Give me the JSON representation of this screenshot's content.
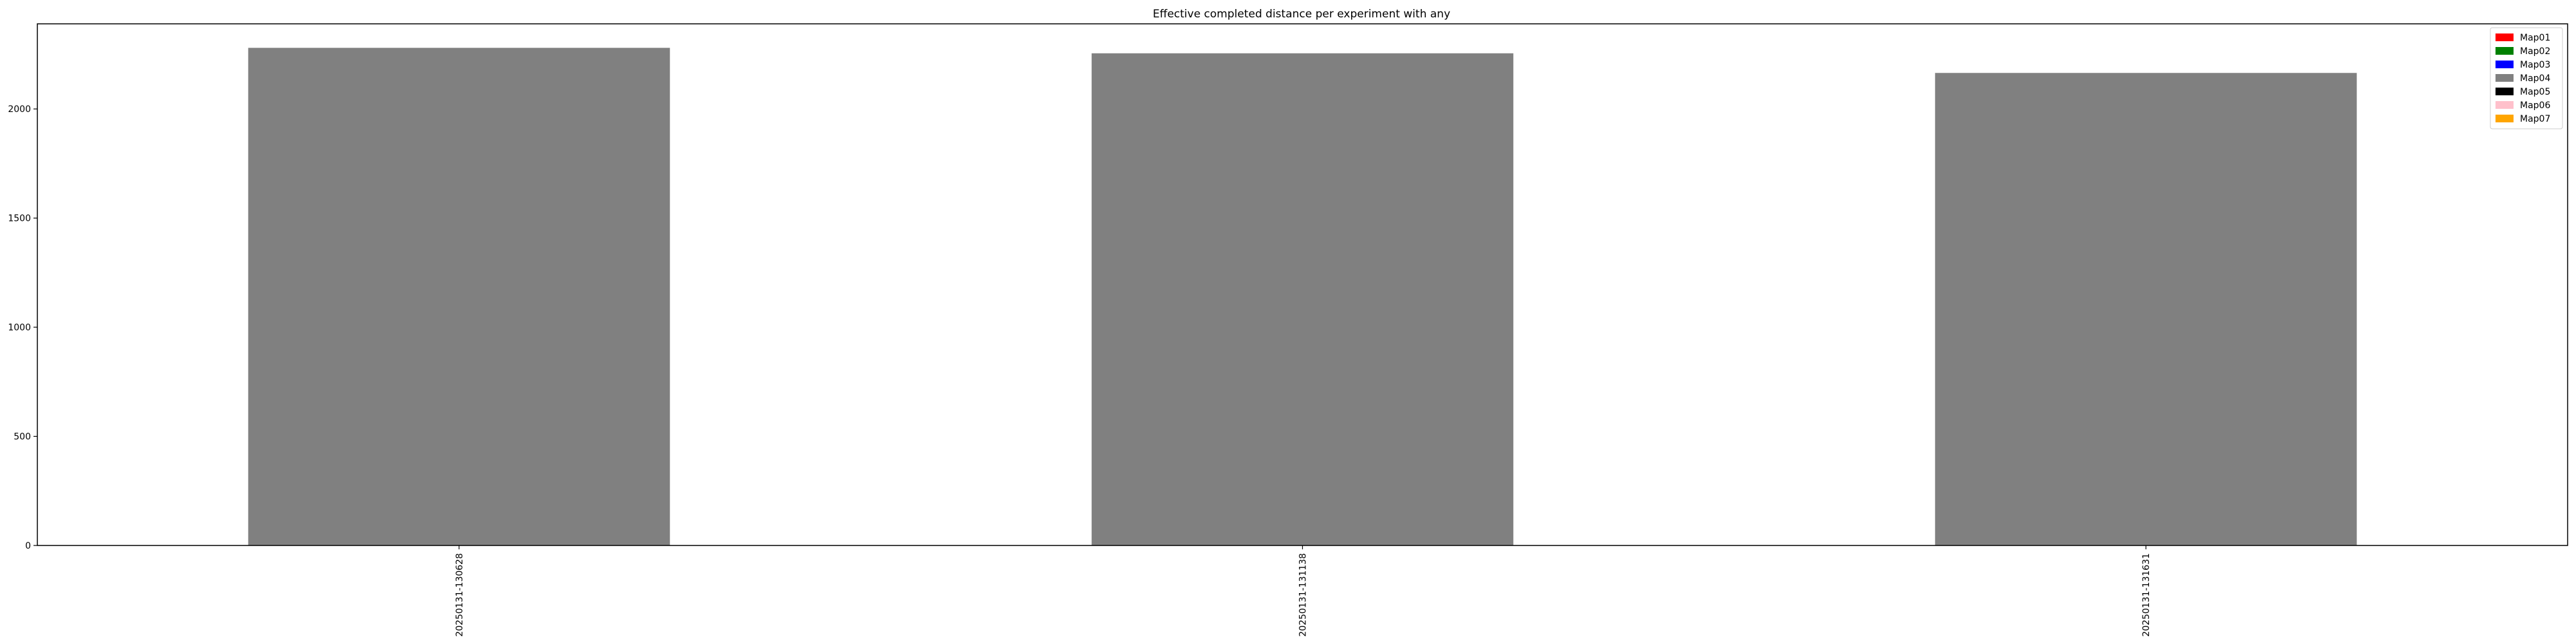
{
  "chart_data": {
    "type": "bar",
    "title": "Effective completed distance per experiment with any",
    "xlabel": "",
    "ylabel": "",
    "categories": [
      "20250131-130628",
      "20250131-131138",
      "20250131-131631"
    ],
    "series": [
      {
        "name": "Map04",
        "values": [
          2280,
          2255,
          2165
        ],
        "color": "#808080"
      }
    ],
    "ylim": [
      0,
      2390
    ],
    "yticks": [
      0,
      500,
      1000,
      1500,
      2000
    ],
    "grid": false,
    "legend": {
      "placement": "top-right",
      "entries": [
        {
          "label": "Map01",
          "color": "#ff0000"
        },
        {
          "label": "Map02",
          "color": "#008000"
        },
        {
          "label": "Map03",
          "color": "#0000ff"
        },
        {
          "label": "Map04",
          "color": "#808080"
        },
        {
          "label": "Map05",
          "color": "#000000"
        },
        {
          "label": "Map06",
          "color": "#ffc0cb"
        },
        {
          "label": "Map07",
          "color": "#ffa500"
        }
      ]
    }
  }
}
